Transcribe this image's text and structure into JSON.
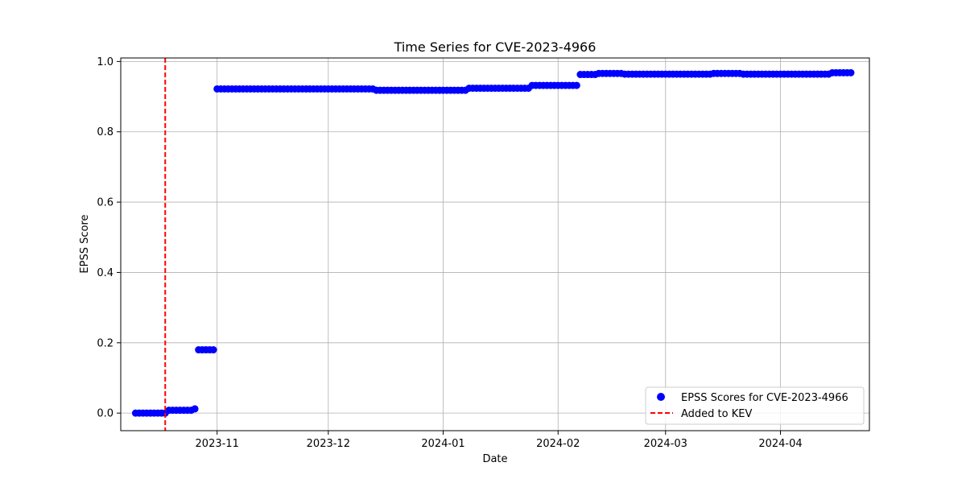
{
  "chart_data": {
    "type": "scatter",
    "title": "Time Series for CVE-2023-4966",
    "xlabel": "Date",
    "ylabel": "EPSS Score",
    "x_type": "date",
    "xlim": [
      "2023-10-06",
      "2024-04-25"
    ],
    "ylim": [
      -0.05,
      1.01
    ],
    "x_ticks": [
      "2023-11-01",
      "2023-12-01",
      "2024-01-01",
      "2024-02-01",
      "2024-03-01",
      "2024-04-01"
    ],
    "x_tick_labels": [
      "2023-11",
      "2023-12",
      "2024-01",
      "2024-02",
      "2024-03",
      "2024-04"
    ],
    "y_ticks": [
      0.0,
      0.2,
      0.4,
      0.6,
      0.8,
      1.0
    ],
    "y_tick_labels": [
      "0.0",
      "0.2",
      "0.4",
      "0.6",
      "0.8",
      "1.0"
    ],
    "grid": true,
    "legend_position": "lower right",
    "series": [
      {
        "name": "EPSS Scores for CVE-2023-4966",
        "kind": "scatter",
        "color": "#0000ff",
        "segments": [
          {
            "start": "2023-10-10",
            "end": "2023-10-18",
            "value": 0.0
          },
          {
            "start": "2023-10-19",
            "end": "2023-10-25",
            "value": 0.008
          },
          {
            "start": "2023-10-26",
            "end": "2023-10-26",
            "value": 0.012
          },
          {
            "start": "2023-10-27",
            "end": "2023-10-31",
            "value": 0.18
          },
          {
            "start": "2023-11-01",
            "end": "2023-12-13",
            "value": 0.922
          },
          {
            "start": "2023-12-14",
            "end": "2024-01-07",
            "value": 0.918
          },
          {
            "start": "2024-01-08",
            "end": "2024-01-24",
            "value": 0.924
          },
          {
            "start": "2024-01-25",
            "end": "2024-02-06",
            "value": 0.932
          },
          {
            "start": "2024-02-07",
            "end": "2024-02-11",
            "value": 0.963
          },
          {
            "start": "2024-02-12",
            "end": "2024-02-18",
            "value": 0.966
          },
          {
            "start": "2024-02-19",
            "end": "2024-03-13",
            "value": 0.964
          },
          {
            "start": "2024-03-14",
            "end": "2024-03-21",
            "value": 0.966
          },
          {
            "start": "2024-03-22",
            "end": "2024-04-14",
            "value": 0.964
          },
          {
            "start": "2024-04-15",
            "end": "2024-04-20",
            "value": 0.968
          }
        ]
      },
      {
        "name": "Added to KEV",
        "kind": "vline",
        "color": "#ff0000",
        "linestyle": "dashed",
        "x": "2023-10-18"
      }
    ]
  }
}
